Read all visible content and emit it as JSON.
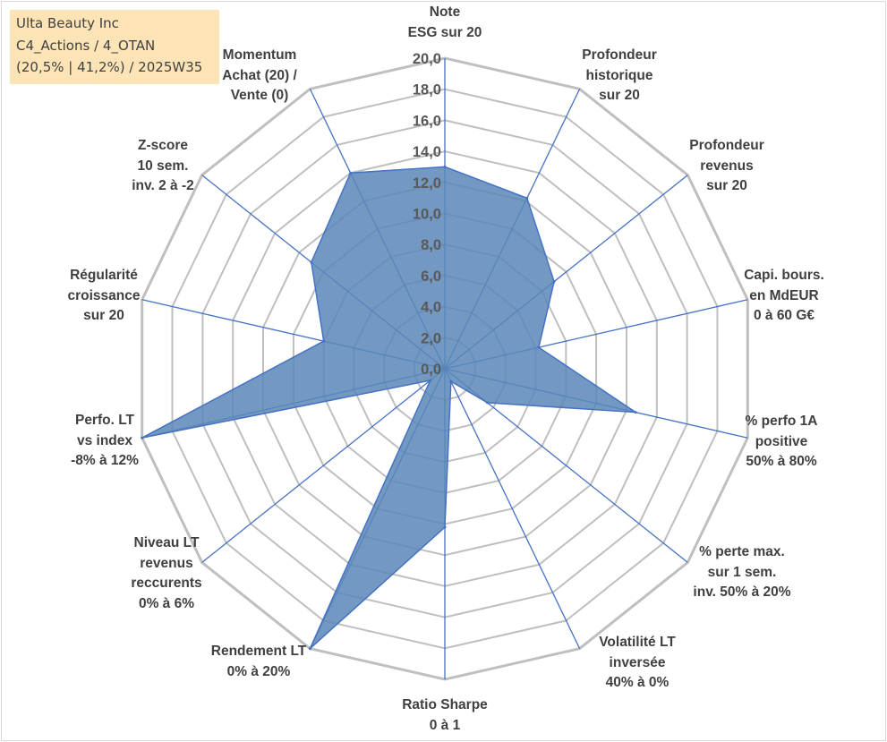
{
  "title": {
    "line1": "Ulta Beauty Inc",
    "line2": "C4_Actions / 4_OTAN",
    "line3": "(20,5% | 41,2%) / 2025W35"
  },
  "colors": {
    "fill": "#5b87b8",
    "grid": "#bfbfbf",
    "axis": "#4472c4",
    "title_box": "#fce4b6"
  },
  "chart_data": {
    "type": "radar",
    "rmin": 0,
    "rmax": 20,
    "grid_step": 2,
    "ticks": [
      "0,0",
      "2,0",
      "4,0",
      "6,0",
      "8,0",
      "10,0",
      "12,0",
      "14,0",
      "16,0",
      "18,0",
      "20,0"
    ],
    "axes": [
      {
        "label": [
          "Note",
          "ESG sur 20"
        ],
        "value": 13.0
      },
      {
        "label": [
          "Profondeur",
          "historique",
          "sur 20"
        ],
        "value": 12.2
      },
      {
        "label": [
          "Profondeur",
          "revenus",
          "sur 20"
        ],
        "value": 9.0
      },
      {
        "label": [
          "Capi. bours.",
          "en MdEUR",
          "0 à 60 G€"
        ],
        "value": 6.2
      },
      {
        "label": [
          "% perfo 1A",
          "positive",
          "50% à 80%"
        ],
        "value": 12.6
      },
      {
        "label": [
          "% perte max.",
          "sur 1 sem.",
          "inv. 50% à 20%"
        ],
        "value": 3.5
      },
      {
        "label": [
          "Volatilité LT",
          "inversée",
          "40% à 0%"
        ],
        "value": 0.9
      },
      {
        "label": [
          "Ratio Sharpe",
          "0 à 1"
        ],
        "value": 10.2
      },
      {
        "label": [
          "Rendement LT",
          "0% à 20%"
        ],
        "value": 20.0
      },
      {
        "label": [
          "Niveau LT",
          "revenus",
          "reccurents",
          "0% à 6%"
        ],
        "value": 1.2
      },
      {
        "label": [
          "Perfo. LT",
          "vs index",
          "-8% à 12%"
        ],
        "value": 20.0
      },
      {
        "label": [
          "Régularité",
          "croissance",
          "sur 20"
        ],
        "value": 8.0
      },
      {
        "label": [
          "Z-score",
          "10 sem.",
          "inv. 2 à -2"
        ],
        "value": 11.0
      },
      {
        "label": [
          "Momentum",
          "Achat (20) /",
          "Vente (0)"
        ],
        "value": 14.0
      }
    ]
  }
}
